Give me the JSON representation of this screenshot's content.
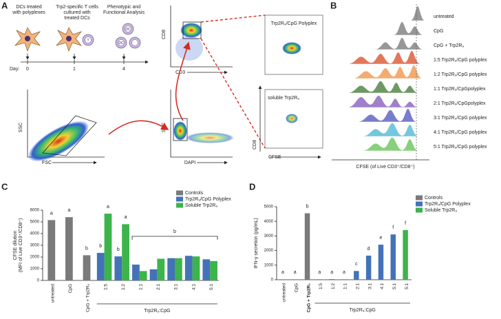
{
  "panels": [
    "A",
    "B",
    "C",
    "D"
  ],
  "panel_a": {
    "steps": [
      [
        "DCs treated",
        "with polyplexes"
      ],
      [
        "Trp2-specific T cells",
        "cultured with",
        "treated DCs"
      ],
      [
        "Phenotypic and",
        "Functional Analysis"
      ]
    ],
    "cell_icons": [
      "T",
      "DC",
      "DC"
    ],
    "day_label": "Day:",
    "days": [
      "0",
      "1",
      "4"
    ],
    "plots": [
      {
        "x": "FSC",
        "y": "SSC"
      },
      {
        "x": "DAPI",
        "y": "SSC"
      },
      {
        "x": "CD3",
        "y": "CD8"
      }
    ],
    "gates": [
      "Trp2R₉/CpG Polyplex",
      "soluble Trp2R₉"
    ],
    "gate_axes": {
      "x": "CFSE",
      "y": "CD8"
    }
  },
  "panel_b": {
    "rows": [
      "untreated",
      "CpG",
      "CpG + Trp2R₉",
      "1:5 Trp2R₉/CpG polyplex",
      "1:2 Trp2R₉/CpG polyplex",
      "1:1 Trp2R₉/CpGpolyplex",
      "2:1 Trp2R₉/CpGpolyplex",
      "3:1 Trp2R₉/CpG polyplex",
      "4:1 Trp2R₉/CpG polyplex",
      "5:1 Trp2R₉/CpG polyplex"
    ],
    "xlabel": "CFSE (of Live CD3⁺/CD8⁺)"
  },
  "chart_data": [
    {
      "type": "bar",
      "ylabel": [
        "CFSE dilution",
        "(MFI of Live CD3⁺/CD8⁺)"
      ],
      "categories": [
        "untreated",
        "CpG",
        "CpG + Trp2R₉",
        "1:5",
        "1:2",
        "1:1",
        "2:1",
        "3:1",
        "4:1",
        "5:1"
      ],
      "group_label": "Trp2R₉:CpG",
      "bracket_label": "b",
      "series": [
        {
          "name": "Controls",
          "color": "#7a7a7a",
          "values": [
            5150,
            5400,
            2150,
            null,
            null,
            null,
            null,
            null,
            null,
            null
          ],
          "letters": [
            "a",
            "a",
            "b",
            null,
            null,
            null,
            null,
            null,
            null,
            null
          ]
        },
        {
          "name": "Trp2R₉/CpG Polyplex",
          "color": "#4472b8",
          "values": [
            null,
            null,
            null,
            2350,
            2050,
            1350,
            950,
            1900,
            2100,
            1800
          ],
          "letters": [
            null,
            null,
            null,
            "b",
            "b",
            null,
            null,
            null,
            null,
            null
          ]
        },
        {
          "name": "Soluble Trp2R₉",
          "color": "#3cb44b",
          "values": [
            null,
            null,
            null,
            5700,
            4800,
            800,
            1850,
            1900,
            2050,
            1650
          ],
          "letters": [
            null,
            null,
            null,
            "a",
            "a",
            null,
            null,
            null,
            null,
            null
          ]
        }
      ],
      "ylim": [
        0,
        6000
      ],
      "yticks": [
        0,
        1000,
        2000,
        3000,
        4000,
        5000,
        6000
      ]
    },
    {
      "type": "bar",
      "ylabel": [
        "IFN-γ secretion (pg/mL)"
      ],
      "categories": [
        "untreated",
        "CpG",
        "CpG + Trp2R₉",
        "1:5",
        "1:2",
        "1:1",
        "2:1",
        "3:1",
        "4:1",
        "5:1",
        "5:1"
      ],
      "group_label": "Trp2R₉:CpG",
      "series": [
        {
          "name": "Controls",
          "color": "#7a7a7a",
          "values": [
            30,
            30,
            4550,
            null,
            null,
            null,
            null,
            null,
            null,
            null,
            null
          ],
          "letters": [
            "a",
            "a",
            "b",
            null,
            null,
            null,
            null,
            null,
            null,
            null,
            null
          ]
        },
        {
          "name": "Trp2R₉/CpG Polyplex",
          "color": "#4472b8",
          "values": [
            null,
            null,
            null,
            30,
            40,
            30,
            600,
            1650,
            2400,
            3100,
            null
          ],
          "letters": [
            null,
            null,
            null,
            "a",
            "a",
            "a",
            "c",
            "d",
            "e",
            "f",
            null
          ]
        },
        {
          "name": "Soluble Trp2R₉",
          "color": "#3cb44b",
          "values": [
            null,
            null,
            null,
            null,
            null,
            null,
            null,
            null,
            null,
            null,
            3400
          ],
          "letters": [
            null,
            null,
            null,
            null,
            null,
            null,
            null,
            null,
            null,
            null,
            "f"
          ]
        }
      ],
      "ylim": [
        0,
        5000
      ],
      "yticks": [
        0,
        1000,
        2000,
        3000,
        4000,
        5000
      ]
    }
  ]
}
